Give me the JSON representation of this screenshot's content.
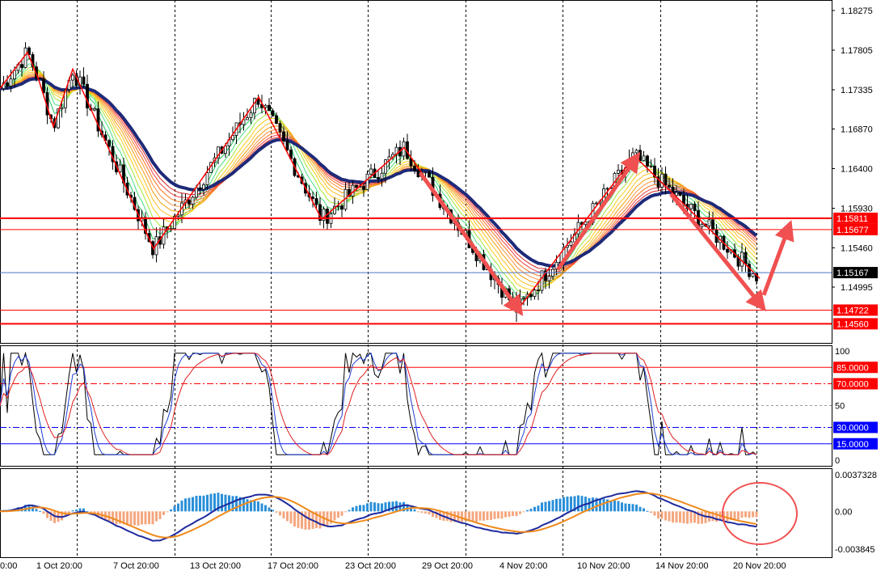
{
  "chart_data": [
    {
      "type": "candlestick",
      "panel": "price",
      "y_ticks": [
        "1.18275",
        "1.17805",
        "1.17335",
        "1.16870",
        "1.16400",
        "1.15930",
        "1.15460",
        "1.14995"
      ],
      "ylim": [
        1.1445,
        1.1835
      ],
      "levels": [
        {
          "value": 1.15811,
          "label": "1.15811",
          "color": "#ff0000",
          "badge": true
        },
        {
          "value": 1.15677,
          "label": "1.15677",
          "color": "#ff0000",
          "badge": true
        },
        {
          "value": 1.14722,
          "label": "1.14722",
          "color": "#ff0000",
          "badge": true
        },
        {
          "value": 1.1456,
          "label": "1.14560",
          "color": "#ff0000",
          "badge": true
        },
        {
          "value": 1.15167,
          "label": "1.15167",
          "color": "#4a78c8",
          "badge": true,
          "badge_color": "#000000"
        }
      ],
      "zigzag_points": [
        [
          0,
          1.1735
        ],
        [
          34,
          1.1778
        ],
        [
          48,
          1.1745
        ],
        [
          66,
          1.169
        ],
        [
          90,
          1.1758
        ],
        [
          110,
          1.1716
        ],
        [
          190,
          1.1545
        ],
        [
          320,
          1.1725
        ],
        [
          398,
          1.158
        ],
        [
          500,
          1.1665
        ],
        [
          640,
          1.1472
        ],
        [
          785,
          1.1655
        ],
        [
          940,
          1.151
        ]
      ],
      "arrows": [
        {
          "from": [
            520,
            1.1635
          ],
          "to": [
            640,
            1.1475
          ]
        },
        {
          "from": [
            690,
            1.152
          ],
          "to": [
            785,
            1.165
          ]
        },
        {
          "from": [
            830,
            1.161
          ],
          "to": [
            940,
            1.148
          ]
        },
        {
          "from": [
            945,
            1.149
          ],
          "to": [
            975,
            1.1568
          ]
        }
      ]
    },
    {
      "type": "line",
      "panel": "oscillator",
      "y_ticks": [
        "100",
        "50",
        "0"
      ],
      "ylim": [
        0,
        100
      ],
      "levels": [
        {
          "value": 85,
          "label": "85.0000",
          "color": "#ff0000",
          "badge": true
        },
        {
          "value": 70,
          "label": "70.0000",
          "color": "#ff0000",
          "badge": true
        },
        {
          "value": 30,
          "label": "30.0000",
          "color": "#0000ff",
          "badge": true
        },
        {
          "value": 15,
          "label": "15.0000",
          "color": "#0000ff",
          "badge": true
        }
      ]
    },
    {
      "type": "histogram",
      "panel": "macd",
      "y_ticks": [
        "0.0037328",
        "0.00",
        "-0.003845"
      ],
      "ylim": [
        -0.003845,
        0.0037328
      ]
    }
  ],
  "x_ticks": [
    "0:00",
    "1 Oct 20:00",
    "7 Oct 20:00",
    "13 Oct 20:00",
    "17 Oct 20:00",
    "23 Oct 20:00",
    "29 Oct 20:00",
    "4 Nov 20:00",
    "10 Nov 20:00",
    "14 Nov 20:00",
    "20 Nov 20:00"
  ]
}
